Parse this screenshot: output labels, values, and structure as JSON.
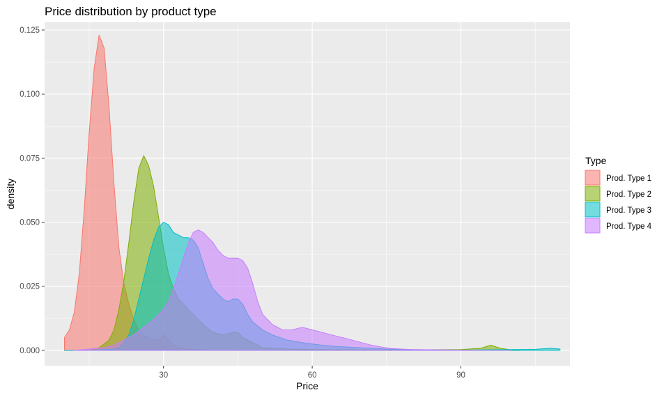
{
  "chart_data": {
    "type": "area",
    "title": "Price distribution by product type",
    "xlabel": "Price",
    "ylabel": "density",
    "xlim": [
      6,
      112
    ],
    "ylim": [
      -0.006,
      0.128
    ],
    "x_ticks": [
      30,
      60,
      90
    ],
    "y_ticks": [
      0.0,
      0.025,
      0.05,
      0.075,
      0.1,
      0.125
    ],
    "y_tick_labels": [
      "0.000",
      "0.025",
      "0.050",
      "0.075",
      "0.100",
      "0.125"
    ],
    "grid": true,
    "legend": {
      "title": "Type",
      "position": "right"
    },
    "series": [
      {
        "name": "Prod. Type 1",
        "fill": "#F8766D",
        "points": [
          [
            10,
            0.005
          ],
          [
            11,
            0.008
          ],
          [
            12,
            0.015
          ],
          [
            13,
            0.03
          ],
          [
            14,
            0.055
          ],
          [
            15,
            0.085
          ],
          [
            16,
            0.11
          ],
          [
            17,
            0.123
          ],
          [
            18,
            0.118
          ],
          [
            19,
            0.095
          ],
          [
            20,
            0.065
          ],
          [
            21,
            0.04
          ],
          [
            22,
            0.026
          ],
          [
            23,
            0.018
          ],
          [
            24,
            0.012
          ],
          [
            25,
            0.008
          ],
          [
            26,
            0.006
          ],
          [
            27,
            0.005
          ],
          [
            28,
            0.004
          ],
          [
            29,
            0.004
          ],
          [
            30,
            0.006
          ],
          [
            31,
            0.004
          ],
          [
            32,
            0.002
          ],
          [
            33,
            0.001
          ],
          [
            35,
            0.0005
          ],
          [
            40,
            0.0
          ],
          [
            60,
            0.0
          ],
          [
            70,
            0.0
          ]
        ]
      },
      {
        "name": "Prod. Type 2",
        "fill": "#7CAE00",
        "points": [
          [
            15,
            0.0
          ],
          [
            17,
            0.001
          ],
          [
            19,
            0.004
          ],
          [
            20,
            0.008
          ],
          [
            21,
            0.016
          ],
          [
            22,
            0.027
          ],
          [
            23,
            0.042
          ],
          [
            24,
            0.058
          ],
          [
            25,
            0.071
          ],
          [
            26,
            0.076
          ],
          [
            27,
            0.072
          ],
          [
            28,
            0.064
          ],
          [
            29,
            0.052
          ],
          [
            30,
            0.04
          ],
          [
            31,
            0.03
          ],
          [
            32,
            0.024
          ],
          [
            33,
            0.02
          ],
          [
            34,
            0.018
          ],
          [
            35,
            0.016
          ],
          [
            36,
            0.014
          ],
          [
            37,
            0.012
          ],
          [
            38,
            0.01
          ],
          [
            40,
            0.007
          ],
          [
            42,
            0.006
          ],
          [
            44,
            0.007
          ],
          [
            45,
            0.007
          ],
          [
            46,
            0.005
          ],
          [
            48,
            0.003
          ],
          [
            50,
            0.001
          ],
          [
            55,
            0.0005
          ],
          [
            60,
            0.0003
          ],
          [
            70,
            0.0002
          ],
          [
            80,
            0.0002
          ],
          [
            90,
            0.0003
          ],
          [
            94,
            0.0008
          ],
          [
            96,
            0.002
          ],
          [
            98,
            0.0008
          ],
          [
            100,
            0.0002
          ],
          [
            102,
            0.0
          ]
        ]
      },
      {
        "name": "Prod. Type 3",
        "fill": "#00BFC4",
        "points": [
          [
            10,
            0.0
          ],
          [
            15,
            0.0
          ],
          [
            20,
            0.0005
          ],
          [
            21,
            0.001
          ],
          [
            22,
            0.003
          ],
          [
            23,
            0.006
          ],
          [
            24,
            0.012
          ],
          [
            25,
            0.02
          ],
          [
            26,
            0.028
          ],
          [
            27,
            0.036
          ],
          [
            28,
            0.043
          ],
          [
            29,
            0.048
          ],
          [
            30,
            0.05
          ],
          [
            31,
            0.049
          ],
          [
            32,
            0.046
          ],
          [
            33,
            0.045
          ],
          [
            34,
            0.044
          ],
          [
            35,
            0.044
          ],
          [
            36,
            0.043
          ],
          [
            37,
            0.04
          ],
          [
            38,
            0.034
          ],
          [
            39,
            0.028
          ],
          [
            40,
            0.024
          ],
          [
            41,
            0.022
          ],
          [
            42,
            0.02
          ],
          [
            43,
            0.019
          ],
          [
            44,
            0.02
          ],
          [
            45,
            0.02
          ],
          [
            46,
            0.018
          ],
          [
            47,
            0.014
          ],
          [
            48,
            0.011
          ],
          [
            50,
            0.008
          ],
          [
            52,
            0.006
          ],
          [
            55,
            0.004
          ],
          [
            58,
            0.003
          ],
          [
            62,
            0.002
          ],
          [
            65,
            0.0015
          ],
          [
            70,
            0.001
          ],
          [
            75,
            0.0005
          ],
          [
            80,
            0.0003
          ],
          [
            85,
            0.0002
          ],
          [
            90,
            0.0001
          ],
          [
            95,
            0.0002
          ],
          [
            100,
            0.0003
          ],
          [
            105,
            0.0004
          ],
          [
            108,
            0.0008
          ],
          [
            110,
            0.0005
          ]
        ]
      },
      {
        "name": "Prod. Type 4",
        "fill": "#C77CFF",
        "points": [
          [
            12,
            0.0
          ],
          [
            15,
            0.0005
          ],
          [
            18,
            0.001
          ],
          [
            20,
            0.002
          ],
          [
            22,
            0.004
          ],
          [
            24,
            0.006
          ],
          [
            26,
            0.009
          ],
          [
            28,
            0.012
          ],
          [
            30,
            0.016
          ],
          [
            31,
            0.019
          ],
          [
            32,
            0.024
          ],
          [
            33,
            0.03
          ],
          [
            34,
            0.036
          ],
          [
            35,
            0.042
          ],
          [
            36,
            0.046
          ],
          [
            37,
            0.047
          ],
          [
            38,
            0.046
          ],
          [
            39,
            0.044
          ],
          [
            40,
            0.042
          ],
          [
            41,
            0.039
          ],
          [
            42,
            0.037
          ],
          [
            43,
            0.036
          ],
          [
            44,
            0.036
          ],
          [
            45,
            0.036
          ],
          [
            46,
            0.035
          ],
          [
            47,
            0.032
          ],
          [
            48,
            0.026
          ],
          [
            49,
            0.019
          ],
          [
            50,
            0.014
          ],
          [
            52,
            0.01
          ],
          [
            54,
            0.008
          ],
          [
            56,
            0.008
          ],
          [
            58,
            0.009
          ],
          [
            60,
            0.008
          ],
          [
            62,
            0.007
          ],
          [
            64,
            0.006
          ],
          [
            66,
            0.005
          ],
          [
            68,
            0.004
          ],
          [
            70,
            0.003
          ],
          [
            72,
            0.002
          ],
          [
            74,
            0.0013
          ],
          [
            76,
            0.0007
          ],
          [
            80,
            0.0003
          ],
          [
            85,
            0.0002
          ],
          [
            90,
            0.0001
          ],
          [
            95,
            0.0
          ],
          [
            100,
            0.0
          ]
        ]
      }
    ]
  }
}
